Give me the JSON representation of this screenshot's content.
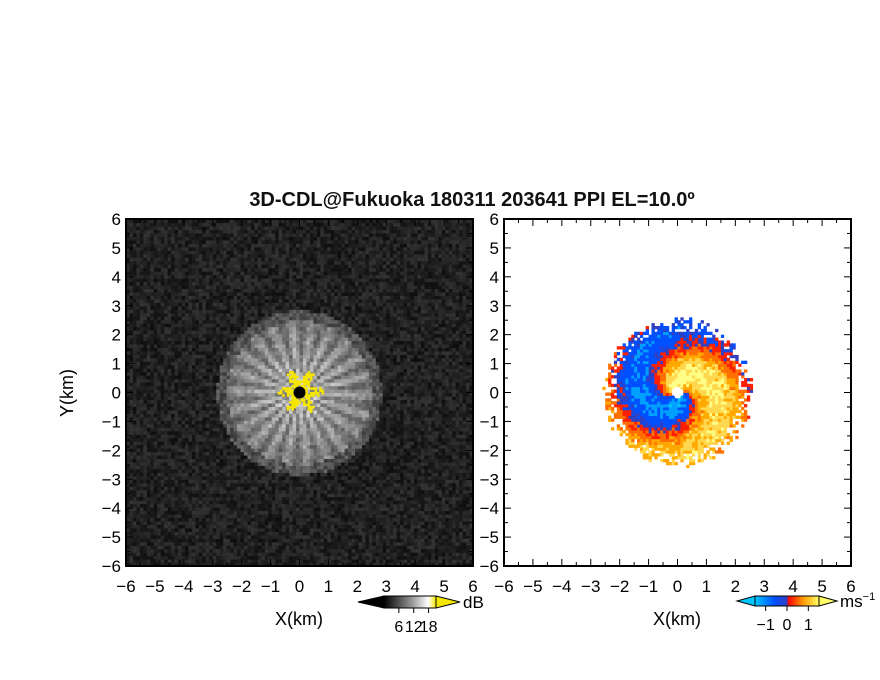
{
  "chart_data": {
    "title": "3D-CDL@Fukuoka 180311 203641 PPI EL=10.0º",
    "panels": [
      {
        "type": "heatmap",
        "name": "snr",
        "xlabel": "X(km)",
        "ylabel": "Y(km)",
        "xlim": [
          -6,
          6
        ],
        "ylim": [
          -6,
          6
        ],
        "x_ticks": [
          "−6",
          "−5",
          "−4",
          "−3",
          "−2",
          "−1",
          "0",
          "1",
          "2",
          "3",
          "4",
          "5",
          "6"
        ],
        "y_ticks": [
          "−6",
          "−5",
          "−4",
          "−3",
          "−2",
          "−1",
          "0",
          "1",
          "2",
          "3",
          "4",
          "5",
          "6"
        ],
        "echo_radius_km": 2.5,
        "colorbar": {
          "unit": "dB",
          "tick_labels": [
            "6",
            "12",
            "18"
          ],
          "tick_values": [
            6,
            12,
            18
          ],
          "range": [
            0,
            21
          ],
          "colors": [
            "#000000",
            "#ffffff",
            "#f5e600"
          ]
        }
      },
      {
        "type": "heatmap",
        "name": "velocity",
        "xlabel": "X(km)",
        "ylabel": "",
        "xlim": [
          -6,
          6
        ],
        "ylim": [
          -6,
          6
        ],
        "x_ticks": [
          "−6",
          "−5",
          "−4",
          "−3",
          "−2",
          "−1",
          "0",
          "1",
          "2",
          "3",
          "4",
          "5",
          "6"
        ],
        "y_ticks": [
          "−6",
          "−5",
          "−4",
          "−3",
          "−2",
          "−1",
          "0",
          "1",
          "2",
          "3",
          "4",
          "5",
          "6"
        ],
        "echo_radius_km": 2.4,
        "colorbar": {
          "unit": "ms",
          "unit_exponent": "−1",
          "tick_labels": [
            "−1",
            "0",
            "1"
          ],
          "tick_values": [
            -1,
            0,
            1
          ],
          "range": [
            -1.5,
            1.5
          ],
          "colors": [
            "#00c8ff",
            "#0050ff",
            "#ff0000",
            "#ff9900",
            "#ffff66"
          ]
        }
      }
    ]
  }
}
